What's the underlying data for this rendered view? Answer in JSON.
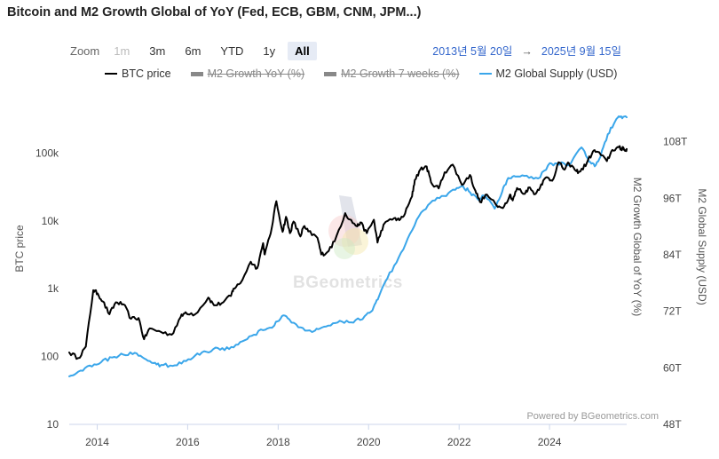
{
  "title": "Bitcoin and M2 Growth Global of YoY (Fed, ECB, GBM, CNM, JPM...)",
  "zoom": {
    "label": "Zoom",
    "buttons": [
      {
        "label": "1m",
        "state": "disabled"
      },
      {
        "label": "3m",
        "state": "normal"
      },
      {
        "label": "6m",
        "state": "normal"
      },
      {
        "label": "YTD",
        "state": "normal"
      },
      {
        "label": "1y",
        "state": "normal"
      },
      {
        "label": "All",
        "state": "active"
      }
    ]
  },
  "range": {
    "from": "2013년 5월 20일",
    "arrow": "→",
    "to": "2025년 9월 15일"
  },
  "watermark": "BGeometrics",
  "credits": "Powered by BGeometrics.com",
  "colors": {
    "btc": "#000000",
    "m2": "#3aa6ea",
    "hidden": "#888888"
  },
  "chart_data": {
    "type": "line",
    "title": "Bitcoin and M2 Growth Global of YoY (Fed, ECB, GBM, CNM, JPM...)",
    "x_range": [
      "2013-05-20",
      "2025-09-15"
    ],
    "x_ticks": [
      "2014",
      "2016",
      "2018",
      "2020",
      "2022",
      "2024"
    ],
    "y_left": {
      "label": "BTC price",
      "scale": "log",
      "range": [
        10,
        1000000
      ],
      "ticks": [
        "10",
        "100",
        "1k",
        "10k",
        "100k"
      ]
    },
    "y_right_inner": {
      "label": "M2 Growth Global of YoY (%)",
      "ticks": []
    },
    "y_right_outer": {
      "label": "M2 Global Supply (USD)",
      "range": [
        48,
        120
      ],
      "ticks": [
        "48T",
        "60T",
        "72T",
        "84T",
        "96T",
        "108T"
      ]
    },
    "legend": {
      "placement": "top"
    },
    "series": [
      {
        "name": "BTC price",
        "visible": true,
        "axis": "y_left",
        "color": "#000000",
        "points": [
          [
            "2013-05-20",
            115
          ],
          [
            "2013-08-01",
            95
          ],
          [
            "2013-10-01",
            140
          ],
          [
            "2013-11-30",
            950
          ],
          [
            "2014-01-05",
            850
          ],
          [
            "2014-02-15",
            650
          ],
          [
            "2014-04-10",
            420
          ],
          [
            "2014-06-01",
            630
          ],
          [
            "2014-08-01",
            590
          ],
          [
            "2014-10-01",
            360
          ],
          [
            "2014-12-01",
            370
          ],
          [
            "2015-01-14",
            180
          ],
          [
            "2015-03-01",
            260
          ],
          [
            "2015-06-01",
            230
          ],
          [
            "2015-08-25",
            210
          ],
          [
            "2015-11-05",
            380
          ],
          [
            "2015-12-15",
            450
          ],
          [
            "2016-03-01",
            420
          ],
          [
            "2016-06-16",
            740
          ],
          [
            "2016-08-01",
            570
          ],
          [
            "2016-10-01",
            610
          ],
          [
            "2016-12-15",
            780
          ],
          [
            "2017-01-05",
            1000
          ],
          [
            "2017-03-01",
            1200
          ],
          [
            "2017-05-25",
            2500
          ],
          [
            "2017-07-15",
            2000
          ],
          [
            "2017-09-01",
            4700
          ],
          [
            "2017-09-15",
            3200
          ],
          [
            "2017-11-01",
            6500
          ],
          [
            "2017-12-17",
            19500
          ],
          [
            "2018-02-06",
            6900
          ],
          [
            "2018-03-05",
            11500
          ],
          [
            "2018-04-06",
            6600
          ],
          [
            "2018-05-05",
            9800
          ],
          [
            "2018-06-29",
            5900
          ],
          [
            "2018-07-25",
            8200
          ],
          [
            "2018-09-01",
            7000
          ],
          [
            "2018-11-15",
            5600
          ],
          [
            "2018-12-15",
            3200
          ],
          [
            "2019-02-01",
            3450
          ],
          [
            "2019-04-02",
            5000
          ],
          [
            "2019-06-26",
            13000
          ],
          [
            "2019-08-01",
            10500
          ],
          [
            "2019-10-01",
            8300
          ],
          [
            "2019-10-26",
            9500
          ],
          [
            "2019-12-18",
            6600
          ],
          [
            "2020-02-13",
            10400
          ],
          [
            "2020-03-13",
            4800
          ],
          [
            "2020-05-01",
            8800
          ],
          [
            "2020-07-27",
            11000
          ],
          [
            "2020-09-05",
            10200
          ],
          [
            "2020-10-21",
            12800
          ],
          [
            "2020-12-17",
            23000
          ],
          [
            "2021-01-08",
            40000
          ],
          [
            "2021-02-21",
            57000
          ],
          [
            "2021-04-14",
            63500
          ],
          [
            "2021-05-19",
            37000
          ],
          [
            "2021-07-20",
            30000
          ],
          [
            "2021-09-06",
            52000
          ],
          [
            "2021-11-10",
            67500
          ],
          [
            "2022-01-24",
            34000
          ],
          [
            "2022-03-29",
            47500
          ],
          [
            "2022-05-12",
            28000
          ],
          [
            "2022-06-18",
            19000
          ],
          [
            "2022-08-13",
            24500
          ],
          [
            "2022-11-09",
            16000
          ],
          [
            "2022-12-31",
            16500
          ],
          [
            "2023-02-16",
            24500
          ],
          [
            "2023-03-10",
            20000
          ],
          [
            "2023-04-14",
            30500
          ],
          [
            "2023-06-15",
            25000
          ],
          [
            "2023-07-14",
            31000
          ],
          [
            "2023-09-11",
            25000
          ],
          [
            "2023-10-25",
            34500
          ],
          [
            "2023-12-08",
            44000
          ],
          [
            "2024-01-23",
            39000
          ],
          [
            "2024-03-14",
            73000
          ],
          [
            "2024-05-01",
            57000
          ],
          [
            "2024-06-05",
            71000
          ],
          [
            "2024-08-05",
            54000
          ],
          [
            "2024-09-06",
            53500
          ],
          [
            "2024-10-29",
            72000
          ],
          [
            "2024-12-17",
            106000
          ],
          [
            "2025-01-20",
            105000
          ],
          [
            "2025-04-08",
            76000
          ],
          [
            "2025-05-22",
            111000
          ],
          [
            "2025-07-14",
            122000
          ],
          [
            "2025-08-02",
            113000
          ],
          [
            "2025-08-14",
            123000
          ],
          [
            "2025-09-01",
            108000
          ],
          [
            "2025-09-15",
            115000
          ]
        ]
      },
      {
        "name": "M2 Growth YoY (%)",
        "visible": false,
        "axis": "y_right_inner",
        "color": "#888888",
        "points": []
      },
      {
        "name": "M2 Growth 7 weeks (%)",
        "visible": false,
        "axis": "y_right_inner",
        "color": "#888888",
        "points": []
      },
      {
        "name": "M2 Global Supply (USD)",
        "visible": true,
        "axis": "y_right_outer",
        "unit": "T",
        "color": "#3aa6ea",
        "points": [
          [
            "2013-05-20",
            58.2
          ],
          [
            "2013-08-01",
            59.2
          ],
          [
            "2013-11-01",
            60.5
          ],
          [
            "2014-02-01",
            61.2
          ],
          [
            "2014-05-01",
            62.2
          ],
          [
            "2014-08-01",
            62.8
          ],
          [
            "2014-11-01",
            63.2
          ],
          [
            "2015-01-15",
            62.0
          ],
          [
            "2015-04-01",
            61.0
          ],
          [
            "2015-06-01",
            60.6
          ],
          [
            "2015-09-01",
            60.4
          ],
          [
            "2015-12-01",
            61.5
          ],
          [
            "2016-03-01",
            62.6
          ],
          [
            "2016-06-01",
            63.4
          ],
          [
            "2016-09-01",
            64.2
          ],
          [
            "2016-12-01",
            64.0
          ],
          [
            "2017-03-01",
            65.5
          ],
          [
            "2017-06-01",
            66.8
          ],
          [
            "2017-09-01",
            68.0
          ],
          [
            "2017-12-01",
            69.0
          ],
          [
            "2018-02-01",
            71.0
          ],
          [
            "2018-04-01",
            70.3
          ],
          [
            "2018-07-01",
            68.6
          ],
          [
            "2018-10-01",
            67.6
          ],
          [
            "2018-12-01",
            68.3
          ],
          [
            "2019-03-01",
            69.0
          ],
          [
            "2019-06-01",
            69.8
          ],
          [
            "2019-09-01",
            69.6
          ],
          [
            "2019-12-01",
            71.0
          ],
          [
            "2020-02-01",
            72.2
          ],
          [
            "2020-03-15",
            74.5
          ],
          [
            "2020-06-01",
            79.0
          ],
          [
            "2020-09-01",
            83.5
          ],
          [
            "2020-12-01",
            88.5
          ],
          [
            "2021-03-01",
            93.0
          ],
          [
            "2021-06-01",
            95.5
          ],
          [
            "2021-09-01",
            96.5
          ],
          [
            "2021-12-01",
            97.8
          ],
          [
            "2022-02-01",
            98.6
          ],
          [
            "2022-04-01",
            97.2
          ],
          [
            "2022-06-01",
            95.8
          ],
          [
            "2022-08-01",
            96.5
          ],
          [
            "2022-10-15",
            93.8
          ],
          [
            "2022-12-15",
            97.4
          ],
          [
            "2023-02-01",
            100.3
          ],
          [
            "2023-04-01",
            100.6
          ],
          [
            "2023-07-01",
            100.8
          ],
          [
            "2023-10-01",
            100.2
          ],
          [
            "2023-12-20",
            103.0
          ],
          [
            "2024-03-01",
            103.4
          ],
          [
            "2024-06-01",
            103.0
          ],
          [
            "2024-09-15",
            106.8
          ],
          [
            "2024-11-15",
            103.8
          ],
          [
            "2024-12-31",
            102.8
          ],
          [
            "2025-02-15",
            104.8
          ],
          [
            "2025-04-15",
            109.6
          ],
          [
            "2025-06-15",
            112.4
          ],
          [
            "2025-08-01",
            113.4
          ],
          [
            "2025-09-15",
            113.2
          ]
        ]
      }
    ]
  }
}
